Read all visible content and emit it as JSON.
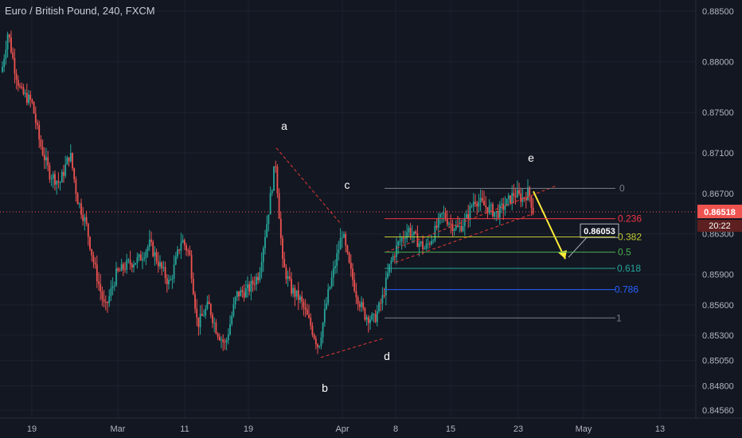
{
  "header": {
    "title": "Euro / British Pound, 240, FXCM"
  },
  "colors": {
    "background": "#131722",
    "grid": "#1e2230",
    "up": "#26a69a",
    "down": "#ef5350",
    "price_line": "#ef5350",
    "projection_arrow": "#ffeb3b"
  },
  "chart_data": {
    "type": "candlestick",
    "symbol": "Euro / British Pound",
    "interval": "240",
    "source": "FXCM",
    "x_ticks": [
      "19",
      "Mar",
      "11",
      "19",
      "Apr",
      "8",
      "15",
      "23",
      "May",
      "13"
    ],
    "y_ticks": [
      "0.88500",
      "0.88000",
      "0.87500",
      "0.87100",
      "0.86700",
      "0.86300",
      "0.85900",
      "0.85600",
      "0.85300",
      "0.85050",
      "0.84800",
      "0.84560"
    ],
    "current_price": {
      "value": 0.86518,
      "label": "0.86518",
      "countdown": "20:22"
    },
    "wave_labels": [
      {
        "label": "a",
        "price": 0.8725
      },
      {
        "label": "b",
        "price": 0.8488
      },
      {
        "label": "c",
        "price": 0.868
      },
      {
        "label": "d",
        "price": 0.8509
      },
      {
        "label": "e",
        "price": 0.8692
      }
    ],
    "fibonacci": {
      "levels": [
        {
          "ratio": "0",
          "price": 0.8675,
          "color": "#787b86"
        },
        {
          "ratio": "0.236",
          "price": 0.8645,
          "color": "#f23645"
        },
        {
          "ratio": "0.382",
          "price": 0.8627,
          "color": "#c0ca33"
        },
        {
          "ratio": "0.5",
          "price": 0.8612,
          "color": "#4caf50"
        },
        {
          "ratio": "0.618",
          "price": 0.8596,
          "color": "#26a69a"
        },
        {
          "ratio": "0.786",
          "price": 0.8575,
          "color": "#2962ff"
        },
        {
          "ratio": "1",
          "price": 0.8547,
          "color": "#787b86"
        }
      ]
    },
    "target": {
      "label": "0.86053",
      "value": 0.86053
    },
    "grid": true
  }
}
